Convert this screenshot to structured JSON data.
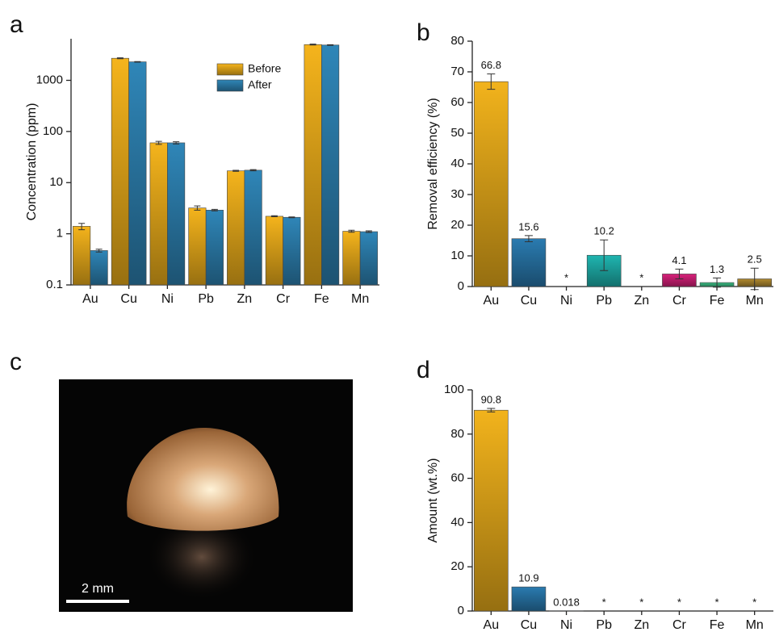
{
  "chart_data": [
    {
      "type": "grouped_bar",
      "panel": "a",
      "ylabel": "Concentration (ppm)",
      "log": true,
      "categories": [
        "Au",
        "Cu",
        "Ni",
        "Pb",
        "Zn",
        "Cr",
        "Fe",
        "Mn"
      ],
      "series": [
        {
          "name": "Before",
          "color": "#f5b41c",
          "values": [
            1.4,
            2700,
            60,
            3.2,
            17,
            2.2,
            5000,
            1.12
          ],
          "errors": [
            0.2,
            50,
            4,
            0.3,
            0.4,
            0.05,
            100,
            0.05
          ]
        },
        {
          "name": "After",
          "color": "#2f86b8",
          "values": [
            0.47,
            2300,
            60,
            2.9,
            17.5,
            2.1,
            4900,
            1.1
          ],
          "errors": [
            0.03,
            30,
            3,
            0.1,
            0.5,
            0.04,
            80,
            0.04
          ]
        }
      ],
      "ylim": [
        0.1,
        6500
      ],
      "yticks": [
        0.1,
        1,
        10,
        100,
        1000
      ],
      "legend": "upper center"
    },
    {
      "type": "bar",
      "panel": "b",
      "ylabel": "Removal efficiency (%)",
      "categories": [
        "Au",
        "Cu",
        "Ni",
        "Pb",
        "Zn",
        "Cr",
        "Fe",
        "Mn"
      ],
      "values": [
        66.8,
        15.6,
        null,
        10.2,
        null,
        4.1,
        1.3,
        2.5
      ],
      "value_labels": [
        "66.8",
        "15.6",
        "*",
        "10.2",
        "*",
        "4.1",
        "1.3",
        "2.5"
      ],
      "errors": [
        2.5,
        1,
        null,
        5,
        null,
        1.6,
        1.5,
        3.5
      ],
      "colors": [
        "#f2b31c",
        "#2a7bb0",
        null,
        "#1fb5b0",
        null,
        "#d8207a",
        "#3cbf86",
        "#b08a30"
      ],
      "ylim": [
        0,
        80
      ],
      "yticks": [
        0,
        10,
        20,
        30,
        40,
        50,
        60,
        70,
        80
      ]
    },
    {
      "type": "image",
      "panel": "c",
      "scale_label": "2 mm"
    },
    {
      "type": "bar",
      "panel": "d",
      "ylabel": "Amount (wt.%)",
      "categories": [
        "Au",
        "Cu",
        "Ni",
        "Pb",
        "Zn",
        "Cr",
        "Fe",
        "Mn"
      ],
      "values": [
        90.8,
        10.9,
        0.018,
        null,
        null,
        null,
        null,
        null
      ],
      "value_labels": [
        "90.8",
        "10.9",
        "0.018",
        "*",
        "*",
        "*",
        "*",
        "*"
      ],
      "errors": [
        0.8,
        null,
        null,
        null,
        null,
        null,
        null,
        null
      ],
      "colors": [
        "#f2b31c",
        "#2a7bb0",
        "#2a7bb0",
        null,
        null,
        null,
        null,
        null
      ],
      "ylim": [
        0,
        100
      ],
      "yticks": [
        0,
        20,
        40,
        60,
        80,
        100
      ]
    }
  ]
}
